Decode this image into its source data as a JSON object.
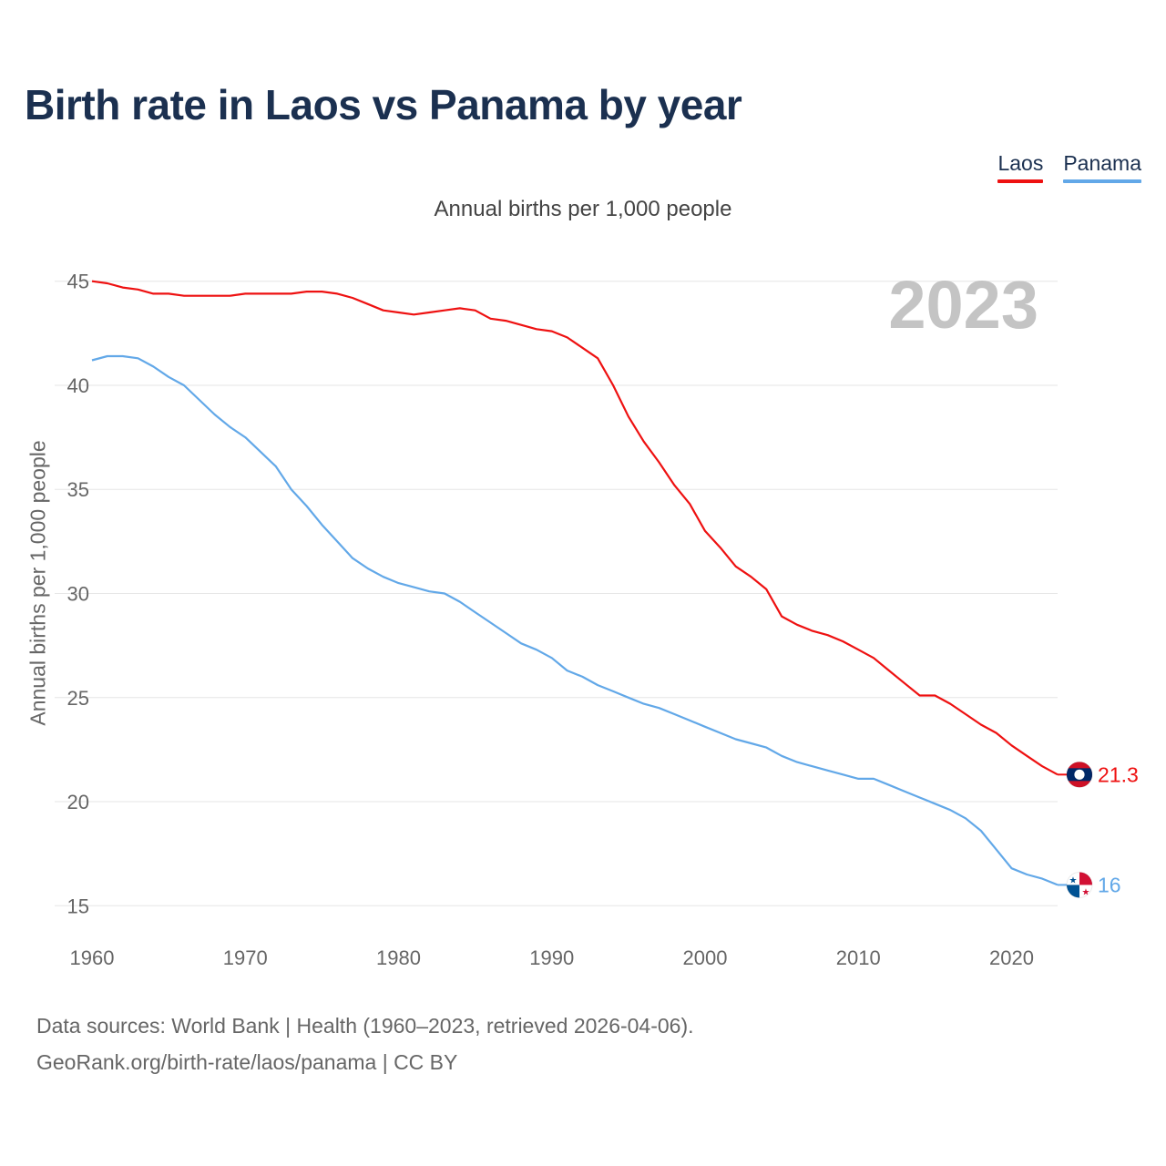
{
  "title": "Birth rate in Laos vs Panama by year",
  "subtitle": "Annual births per 1,000 people",
  "legend": [
    {
      "label": "Laos",
      "color": "#ee1111"
    },
    {
      "label": "Panama",
      "color": "#62a8e8"
    }
  ],
  "footer": {
    "line1": "Data sources: World Bank | Health (1960–2023, retrieved 2026-04-06).",
    "line2": "GeoRank.org/birth-rate/laos/panama | CC BY"
  },
  "chart_data": {
    "type": "line",
    "title": "Birth rate in Laos vs Panama by year",
    "xlabel": "",
    "ylabel": "Annual births per 1,000 people",
    "year_label": "2023",
    "xlim": [
      1960,
      2023
    ],
    "ylim": [
      13,
      47
    ],
    "x_ticks": [
      1960,
      1970,
      1980,
      1990,
      2000,
      2010,
      2020
    ],
    "y_ticks": [
      15,
      20,
      25,
      30,
      35,
      40,
      45
    ],
    "grid": true,
    "x": [
      1960,
      1961,
      1962,
      1963,
      1964,
      1965,
      1966,
      1967,
      1968,
      1969,
      1970,
      1971,
      1972,
      1973,
      1974,
      1975,
      1976,
      1977,
      1978,
      1979,
      1980,
      1981,
      1982,
      1983,
      1984,
      1985,
      1986,
      1987,
      1988,
      1989,
      1990,
      1991,
      1992,
      1993,
      1994,
      1995,
      1996,
      1997,
      1998,
      1999,
      2000,
      2001,
      2002,
      2003,
      2004,
      2005,
      2006,
      2007,
      2008,
      2009,
      2010,
      2011,
      2012,
      2013,
      2014,
      2015,
      2016,
      2017,
      2018,
      2019,
      2020,
      2021,
      2022,
      2023
    ],
    "series": [
      {
        "name": "Laos",
        "color": "#ee1111",
        "end_label": "21.3",
        "flag": "laos-flag",
        "values": [
          45.0,
          44.9,
          44.7,
          44.6,
          44.4,
          44.4,
          44.3,
          44.3,
          44.3,
          44.3,
          44.4,
          44.4,
          44.4,
          44.4,
          44.5,
          44.5,
          44.4,
          44.2,
          43.9,
          43.6,
          43.5,
          43.4,
          43.5,
          43.6,
          43.7,
          43.6,
          43.2,
          43.1,
          42.9,
          42.7,
          42.6,
          42.3,
          41.8,
          41.3,
          40.0,
          38.5,
          37.3,
          36.3,
          35.2,
          34.3,
          33.0,
          32.2,
          31.3,
          30.8,
          30.2,
          28.9,
          28.5,
          28.2,
          28.0,
          27.7,
          27.3,
          26.9,
          26.3,
          25.7,
          25.1,
          25.1,
          24.7,
          24.2,
          23.7,
          23.3,
          22.7,
          22.2,
          21.7,
          21.3
        ]
      },
      {
        "name": "Panama",
        "color": "#62a8e8",
        "end_label": "16",
        "flag": "panama-flag",
        "values": [
          41.2,
          41.4,
          41.4,
          41.3,
          40.9,
          40.4,
          40.0,
          39.3,
          38.6,
          38.0,
          37.5,
          36.8,
          36.1,
          35.0,
          34.2,
          33.3,
          32.5,
          31.7,
          31.2,
          30.8,
          30.5,
          30.3,
          30.1,
          30.0,
          29.6,
          29.1,
          28.6,
          28.1,
          27.6,
          27.3,
          26.9,
          26.3,
          26.0,
          25.6,
          25.3,
          25.0,
          24.7,
          24.5,
          24.2,
          23.9,
          23.6,
          23.3,
          23.0,
          22.8,
          22.6,
          22.2,
          21.9,
          21.7,
          21.5,
          21.3,
          21.1,
          21.1,
          20.8,
          20.5,
          20.2,
          19.9,
          19.6,
          19.2,
          18.6,
          17.7,
          16.8,
          16.5,
          16.3,
          16.0
        ]
      }
    ]
  }
}
